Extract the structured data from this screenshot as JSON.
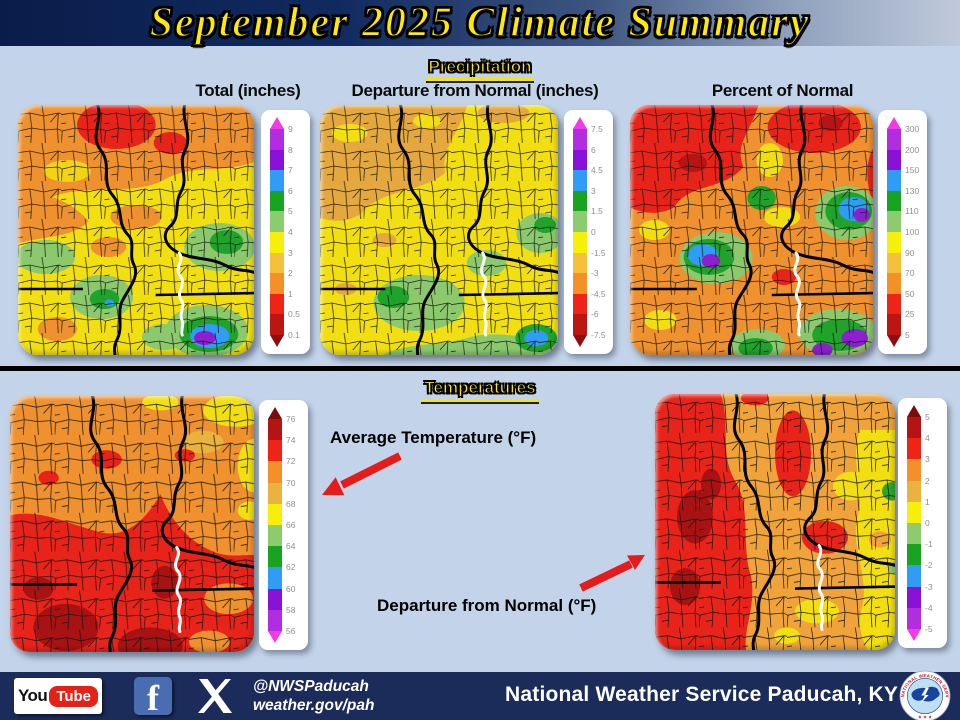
{
  "title": "September 2025 Climate Summary",
  "precipitation": {
    "heading": "Precipitation",
    "maps": [
      {
        "label": "Total (inches)",
        "colorbar": {
          "ticks": [
            "9",
            "8",
            "7",
            "6",
            "5",
            "4",
            "3",
            "2",
            "1",
            "0.5",
            "0.1"
          ],
          "segments": [
            "#b22ce0",
            "#8912d6",
            "#2f9df5",
            "#18a321",
            "#8ccb6e",
            "#f5ef0a",
            "#f5c13a",
            "#f58f28",
            "#ee2417",
            "#bc1612"
          ],
          "arrow_top": "#f23ae6",
          "arrow_bottom": "#8f0d0d"
        }
      },
      {
        "label": "Departure from Normal (inches)",
        "colorbar": {
          "ticks": [
            "7.5",
            "6",
            "4.5",
            "3",
            "1.5",
            "0",
            "-1.5",
            "-3",
            "-4.5",
            "-6",
            "-7.5"
          ],
          "segments": [
            "#b22ce0",
            "#8912d6",
            "#2f9df5",
            "#18a321",
            "#8ccb6e",
            "#f5ef0a",
            "#f5c13a",
            "#f58f28",
            "#ee2417",
            "#bc1612"
          ],
          "arrow_top": "#f23ae6",
          "arrow_bottom": "#8f0d0d"
        }
      },
      {
        "label": "Percent of Normal",
        "colorbar": {
          "ticks": [
            "300",
            "200",
            "150",
            "130",
            "110",
            "100",
            "90",
            "70",
            "50",
            "25",
            "5"
          ],
          "segments": [
            "#b22ce0",
            "#8912d6",
            "#2f9df5",
            "#18a321",
            "#8ccb6e",
            "#f5ef0a",
            "#f5c13a",
            "#f58f28",
            "#ee2417",
            "#bc1612"
          ],
          "arrow_top": "#f23ae6",
          "arrow_bottom": "#8f0d0d"
        }
      }
    ]
  },
  "temperatures": {
    "heading": "Temperatures",
    "maps": [
      {
        "label": "Average Temperature (°F)",
        "colorbar": {
          "ticks": [
            "76",
            "74",
            "72",
            "70",
            "68",
            "66",
            "64",
            "62",
            "60",
            "58",
            "56"
          ],
          "segments": [
            "#b51414",
            "#ee2417",
            "#f58f28",
            "#eab23f",
            "#f5ef0a",
            "#8ccb6e",
            "#18a321",
            "#2f9df5",
            "#8912d6",
            "#b22ce0"
          ],
          "arrow_top": "#7a0c0c",
          "arrow_bottom": "#f23ae6"
        }
      },
      {
        "label": "Departure from Normal (°F)",
        "colorbar": {
          "ticks": [
            "5",
            "4",
            "3",
            "2",
            "1",
            "0",
            "-1",
            "-2",
            "-3",
            "-4",
            "-5"
          ],
          "segments": [
            "#b51414",
            "#ee2417",
            "#f58f28",
            "#eab23f",
            "#f5ef0a",
            "#8ccb6e",
            "#18a321",
            "#2f9df5",
            "#8912d6",
            "#b22ce0"
          ],
          "arrow_top": "#7a0c0c",
          "arrow_bottom": "#f23ae6"
        }
      }
    ]
  },
  "footer": {
    "youtube": {
      "part1": "You",
      "part2": "Tube"
    },
    "facebook_letter": "f",
    "handle": "@NWSPaducah",
    "website": "weather.gov/pah",
    "org": "National Weather Service Paducah, KY",
    "nws_ring_text": "NATIONAL WEATHER SERVICE",
    "nws_stars": "★ ★ ★",
    "icons": [
      "youtube-icon",
      "facebook-icon",
      "x-icon",
      "nws-logo-icon"
    ]
  },
  "colors": {
    "background": "#c3d4ea",
    "titlebar_navy": "#0d2150",
    "title_text": "#ffe90a",
    "heading_text": "#ffe90a",
    "footer_bg": "#1b2c5a",
    "annotation_arrow_red": "#e51c1c",
    "youtube_red": "#e62117",
    "facebook_blue": "#4a6cb3"
  }
}
